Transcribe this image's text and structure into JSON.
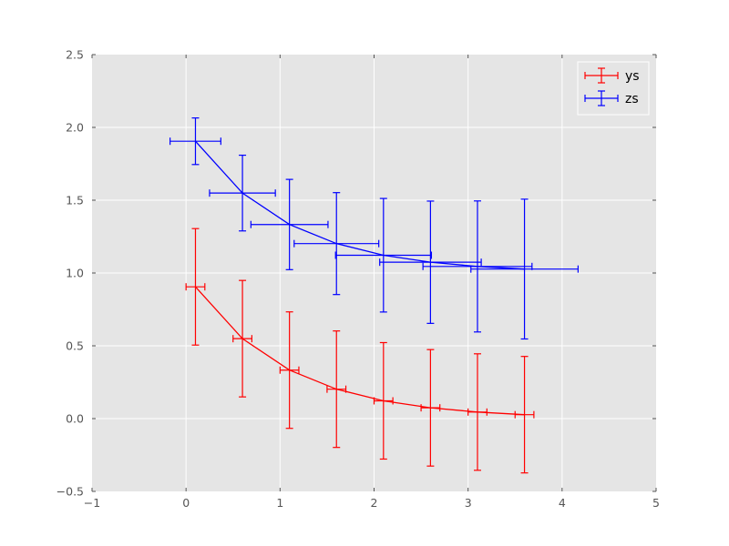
{
  "chart_data": {
    "type": "line",
    "title": "",
    "xlabel": "",
    "ylabel": "",
    "xlim": [
      -1,
      5
    ],
    "ylim": [
      -0.5,
      2.5
    ],
    "x_ticks": [
      -1,
      0,
      1,
      2,
      3,
      4,
      5
    ],
    "x_tick_labels": [
      "−1",
      "0",
      "1",
      "2",
      "3",
      "4",
      "5"
    ],
    "y_ticks": [
      -0.5,
      0.0,
      0.5,
      1.0,
      1.5,
      2.0,
      2.5
    ],
    "y_tick_labels": [
      "−0.5",
      "0.0",
      "0.5",
      "1.0",
      "1.5",
      "2.0",
      "2.5"
    ],
    "grid": true,
    "legend_position": "top-right",
    "background_color": "#e5e5e5",
    "series": [
      {
        "name": "ys",
        "color": "#ff0000",
        "x": [
          0.1,
          0.6,
          1.1,
          1.6,
          2.1,
          2.6,
          3.1,
          3.6
        ],
        "y": [
          0.905,
          0.549,
          0.333,
          0.202,
          0.122,
          0.074,
          0.045,
          0.027
        ],
        "xerr": [
          0.1,
          0.1,
          0.1,
          0.1,
          0.1,
          0.1,
          0.1,
          0.1
        ],
        "yerr": [
          0.4,
          0.4,
          0.4,
          0.4,
          0.4,
          0.4,
          0.4,
          0.4
        ],
        "xerr_scale_note": ""
      },
      {
        "name": "zs",
        "color": "#0000ff",
        "x": [
          0.1,
          0.6,
          1.1,
          1.6,
          2.1,
          2.6,
          3.1,
          3.6
        ],
        "y": [
          1.905,
          1.549,
          1.333,
          1.202,
          1.122,
          1.074,
          1.045,
          1.027
        ],
        "xerr": [
          0.27,
          0.35,
          0.41,
          0.45,
          0.51,
          0.54,
          0.58,
          0.57
        ],
        "yerr": [
          0.16,
          0.26,
          0.31,
          0.35,
          0.39,
          0.42,
          0.45,
          0.48
        ]
      }
    ]
  }
}
